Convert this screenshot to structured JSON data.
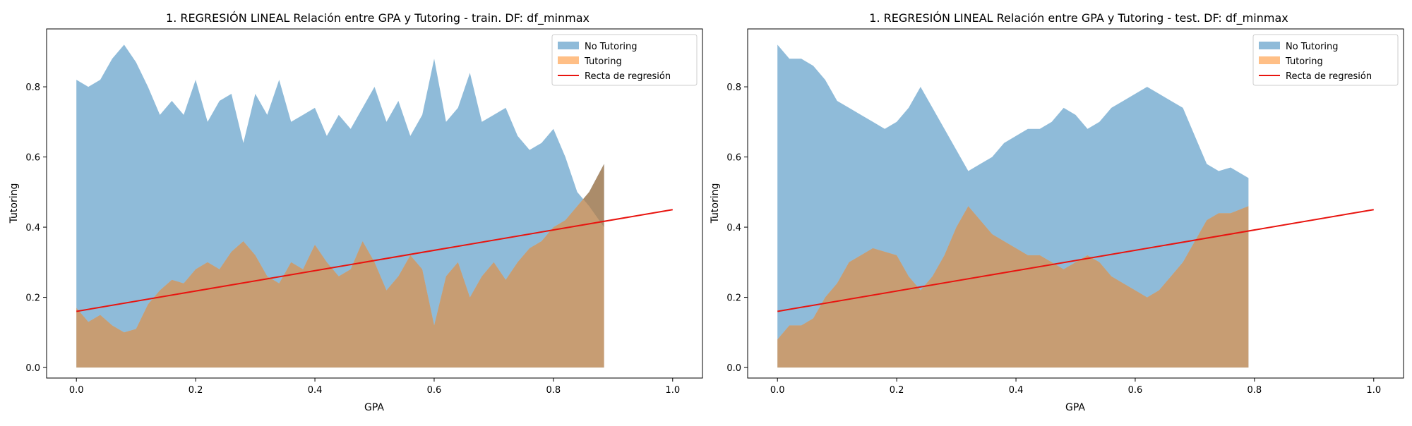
{
  "chart_data": [
    {
      "type": "area",
      "title": "1. REGRESIÓN LINEAL Relación entre GPA y Tutoring - train. DF: df_minmax",
      "xlabel": "GPA",
      "ylabel": "Tutoring",
      "xlim": [
        -0.05,
        1.05
      ],
      "ylim": [
        -0.03,
        0.965
      ],
      "xticks": [
        0.0,
        0.2,
        0.4,
        0.6,
        0.8,
        1.0
      ],
      "xtick_labels": [
        "0.0",
        "0.2",
        "0.4",
        "0.6",
        "0.8",
        "1.0"
      ],
      "yticks": [
        0.0,
        0.2,
        0.4,
        0.6,
        0.8
      ],
      "ytick_labels": [
        "0.0",
        "0.2",
        "0.4",
        "0.6",
        "0.8"
      ],
      "legend_position": "top-right",
      "grid": false,
      "series": [
        {
          "name": "No Tutoring",
          "kind": "area",
          "color": "#1f77b4",
          "x": [
            0.0,
            0.02,
            0.04,
            0.06,
            0.08,
            0.1,
            0.12,
            0.14,
            0.16,
            0.18,
            0.2,
            0.22,
            0.24,
            0.26,
            0.28,
            0.3,
            0.32,
            0.34,
            0.36,
            0.38,
            0.4,
            0.42,
            0.44,
            0.46,
            0.48,
            0.5,
            0.52,
            0.54,
            0.56,
            0.58,
            0.6,
            0.62,
            0.64,
            0.66,
            0.68,
            0.7,
            0.72,
            0.74,
            0.76,
            0.78,
            0.8,
            0.82,
            0.84,
            0.86,
            0.885
          ],
          "values": [
            0.82,
            0.8,
            0.82,
            0.88,
            0.92,
            0.87,
            0.8,
            0.72,
            0.76,
            0.72,
            0.82,
            0.7,
            0.76,
            0.78,
            0.64,
            0.78,
            0.72,
            0.82,
            0.7,
            0.72,
            0.74,
            0.66,
            0.72,
            0.68,
            0.74,
            0.8,
            0.7,
            0.76,
            0.66,
            0.72,
            0.88,
            0.7,
            0.74,
            0.84,
            0.7,
            0.72,
            0.74,
            0.66,
            0.62,
            0.64,
            0.68,
            0.6,
            0.5,
            0.46,
            0.4
          ],
          "lower": [
            0.17,
            0.13,
            0.15,
            0.12,
            0.1,
            0.11,
            0.18,
            0.22,
            0.25,
            0.24,
            0.28,
            0.3,
            0.28,
            0.33,
            0.36,
            0.32,
            0.26,
            0.24,
            0.3,
            0.28,
            0.35,
            0.3,
            0.26,
            0.28,
            0.36,
            0.3,
            0.22,
            0.26,
            0.32,
            0.28,
            0.12,
            0.26,
            0.3,
            0.2,
            0.26,
            0.3,
            0.25,
            0.3,
            0.34,
            0.36,
            0.4,
            0.42,
            0.46,
            0.5,
            0.58
          ]
        },
        {
          "name": "Tutoring",
          "kind": "area",
          "color": "#ff7f0e",
          "x": [
            0.0,
            0.02,
            0.04,
            0.06,
            0.08,
            0.1,
            0.12,
            0.14,
            0.16,
            0.18,
            0.2,
            0.22,
            0.24,
            0.26,
            0.28,
            0.3,
            0.32,
            0.34,
            0.36,
            0.38,
            0.4,
            0.42,
            0.44,
            0.46,
            0.48,
            0.5,
            0.52,
            0.54,
            0.56,
            0.58,
            0.6,
            0.62,
            0.64,
            0.66,
            0.68,
            0.7,
            0.72,
            0.74,
            0.76,
            0.78,
            0.8,
            0.82,
            0.84,
            0.86,
            0.885
          ],
          "values": [
            0.17,
            0.13,
            0.15,
            0.12,
            0.1,
            0.11,
            0.18,
            0.22,
            0.25,
            0.24,
            0.28,
            0.3,
            0.28,
            0.33,
            0.36,
            0.32,
            0.26,
            0.24,
            0.3,
            0.28,
            0.35,
            0.3,
            0.26,
            0.28,
            0.36,
            0.3,
            0.22,
            0.26,
            0.32,
            0.28,
            0.12,
            0.26,
            0.3,
            0.2,
            0.26,
            0.3,
            0.25,
            0.3,
            0.34,
            0.36,
            0.4,
            0.42,
            0.46,
            0.5,
            0.58
          ]
        },
        {
          "name": "Recta de regresión",
          "kind": "line",
          "color": "#e8140f",
          "x": [
            0.0,
            1.0
          ],
          "values": [
            0.16,
            0.45
          ]
        }
      ]
    },
    {
      "type": "area",
      "title": "1. REGRESIÓN LINEAL Relación entre GPA y Tutoring - test. DF: df_minmax",
      "xlabel": "GPA",
      "ylabel": "Tutoring",
      "xlim": [
        -0.05,
        1.05
      ],
      "ylim": [
        -0.03,
        0.965
      ],
      "xticks": [
        0.0,
        0.2,
        0.4,
        0.6,
        0.8,
        1.0
      ],
      "xtick_labels": [
        "0.0",
        "0.2",
        "0.4",
        "0.6",
        "0.8",
        "1.0"
      ],
      "yticks": [
        0.0,
        0.2,
        0.4,
        0.6,
        0.8
      ],
      "ytick_labels": [
        "0.0",
        "0.2",
        "0.4",
        "0.6",
        "0.8"
      ],
      "legend_position": "top-right",
      "grid": false,
      "series": [
        {
          "name": "No Tutoring",
          "kind": "area",
          "color": "#1f77b4",
          "x": [
            0.0,
            0.02,
            0.04,
            0.06,
            0.08,
            0.1,
            0.12,
            0.14,
            0.16,
            0.18,
            0.2,
            0.22,
            0.24,
            0.26,
            0.28,
            0.3,
            0.32,
            0.34,
            0.36,
            0.38,
            0.4,
            0.42,
            0.44,
            0.46,
            0.48,
            0.5,
            0.52,
            0.54,
            0.56,
            0.58,
            0.6,
            0.62,
            0.64,
            0.66,
            0.68,
            0.7,
            0.72,
            0.74,
            0.76,
            0.79
          ],
          "values": [
            0.92,
            0.88,
            0.88,
            0.86,
            0.82,
            0.76,
            0.74,
            0.72,
            0.7,
            0.68,
            0.7,
            0.74,
            0.8,
            0.74,
            0.68,
            0.62,
            0.56,
            0.58,
            0.6,
            0.64,
            0.66,
            0.68,
            0.68,
            0.7,
            0.74,
            0.72,
            0.68,
            0.7,
            0.74,
            0.76,
            0.78,
            0.8,
            0.78,
            0.76,
            0.74,
            0.66,
            0.58,
            0.56,
            0.57,
            0.54
          ],
          "lower": [
            0.08,
            0.12,
            0.12,
            0.14,
            0.2,
            0.24,
            0.3,
            0.32,
            0.34,
            0.33,
            0.32,
            0.26,
            0.22,
            0.26,
            0.32,
            0.4,
            0.46,
            0.42,
            0.38,
            0.36,
            0.34,
            0.32,
            0.32,
            0.3,
            0.28,
            0.3,
            0.32,
            0.3,
            0.26,
            0.24,
            0.22,
            0.2,
            0.22,
            0.26,
            0.3,
            0.36,
            0.42,
            0.44,
            0.44,
            0.46
          ]
        },
        {
          "name": "Tutoring",
          "kind": "area",
          "color": "#ff7f0e",
          "x": [
            0.0,
            0.02,
            0.04,
            0.06,
            0.08,
            0.1,
            0.12,
            0.14,
            0.16,
            0.18,
            0.2,
            0.22,
            0.24,
            0.26,
            0.28,
            0.3,
            0.32,
            0.34,
            0.36,
            0.38,
            0.4,
            0.42,
            0.44,
            0.46,
            0.48,
            0.5,
            0.52,
            0.54,
            0.56,
            0.58,
            0.6,
            0.62,
            0.64,
            0.66,
            0.68,
            0.7,
            0.72,
            0.74,
            0.76,
            0.79
          ],
          "values": [
            0.08,
            0.12,
            0.12,
            0.14,
            0.2,
            0.24,
            0.3,
            0.32,
            0.34,
            0.33,
            0.32,
            0.26,
            0.22,
            0.26,
            0.32,
            0.4,
            0.46,
            0.42,
            0.38,
            0.36,
            0.34,
            0.32,
            0.32,
            0.3,
            0.28,
            0.3,
            0.32,
            0.3,
            0.26,
            0.24,
            0.22,
            0.2,
            0.22,
            0.26,
            0.3,
            0.36,
            0.42,
            0.44,
            0.44,
            0.46
          ]
        },
        {
          "name": "Recta de regresión",
          "kind": "line",
          "color": "#e8140f",
          "x": [
            0.0,
            1.0
          ],
          "values": [
            0.16,
            0.45
          ]
        }
      ]
    }
  ]
}
